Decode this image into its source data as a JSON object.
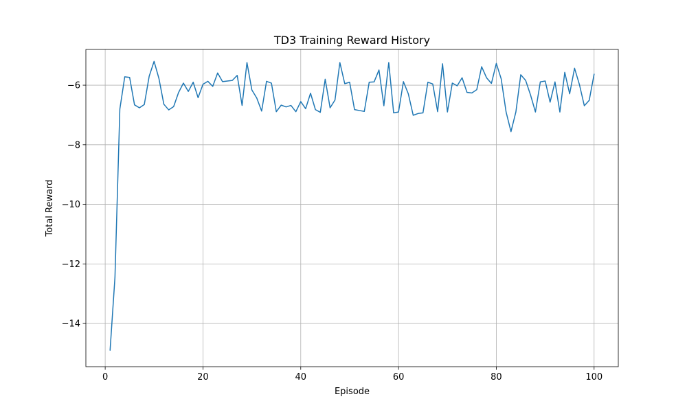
{
  "chart_data": {
    "type": "line",
    "title": "TD3 Training Reward History",
    "xlabel": "Episode",
    "ylabel": "Total Reward",
    "xlim": [
      -3.95,
      104.95
    ],
    "ylim": [
      -15.45,
      -4.8
    ],
    "xticks": [
      0,
      20,
      40,
      60,
      80,
      100
    ],
    "yticks": [
      -14,
      -12,
      -10,
      -8,
      -6
    ],
    "grid": true,
    "series": [
      {
        "color": "#1f77b4",
        "x": [
          1,
          2,
          3,
          4,
          5,
          6,
          7,
          8,
          9,
          10,
          11,
          12,
          13,
          14,
          15,
          16,
          17,
          18,
          19,
          20,
          21,
          22,
          23,
          24,
          25,
          26,
          27,
          28,
          29,
          30,
          31,
          32,
          33,
          34,
          35,
          36,
          37,
          38,
          39,
          40,
          41,
          42,
          43,
          44,
          45,
          46,
          47,
          48,
          49,
          50,
          51,
          52,
          53,
          54,
          55,
          56,
          57,
          58,
          59,
          60,
          61,
          62,
          63,
          64,
          65,
          66,
          67,
          68,
          69,
          70,
          71,
          72,
          73,
          74,
          75,
          76,
          77,
          78,
          79,
          80,
          81,
          82,
          83,
          84,
          85,
          86,
          87,
          88,
          89,
          90,
          91,
          92,
          93,
          94,
          95,
          96,
          97,
          98,
          99,
          100
        ],
        "values": [
          -14.9,
          -12.45,
          -6.8,
          -5.72,
          -5.74,
          -6.66,
          -6.76,
          -6.65,
          -5.7,
          -5.2,
          -5.78,
          -6.64,
          -6.83,
          -6.72,
          -6.25,
          -5.93,
          -6.21,
          -5.9,
          -6.42,
          -5.97,
          -5.87,
          -6.04,
          -5.59,
          -5.88,
          -5.86,
          -5.84,
          -5.67,
          -6.68,
          -5.24,
          -6.16,
          -6.43,
          -6.87,
          -5.87,
          -5.93,
          -6.89,
          -6.67,
          -6.73,
          -6.68,
          -6.89,
          -6.55,
          -6.79,
          -6.27,
          -6.82,
          -6.91,
          -5.8,
          -6.76,
          -6.5,
          -5.24,
          -5.95,
          -5.9,
          -6.82,
          -6.85,
          -6.88,
          -5.9,
          -5.89,
          -5.49,
          -6.69,
          -5.24,
          -6.93,
          -6.9,
          -5.88,
          -6.29,
          -7.01,
          -6.95,
          -6.93,
          -5.9,
          -5.96,
          -6.89,
          -5.28,
          -6.9,
          -5.93,
          -6.02,
          -5.75,
          -6.24,
          -6.26,
          -6.15,
          -5.38,
          -5.75,
          -5.94,
          -5.27,
          -5.79,
          -6.9,
          -7.56,
          -6.9,
          -5.65,
          -5.84,
          -6.33,
          -6.9,
          -5.89,
          -5.86,
          -6.57,
          -5.89,
          -6.9,
          -5.57,
          -6.29,
          -5.43,
          -5.98,
          -6.69,
          -6.51,
          -5.63
        ]
      }
    ]
  }
}
